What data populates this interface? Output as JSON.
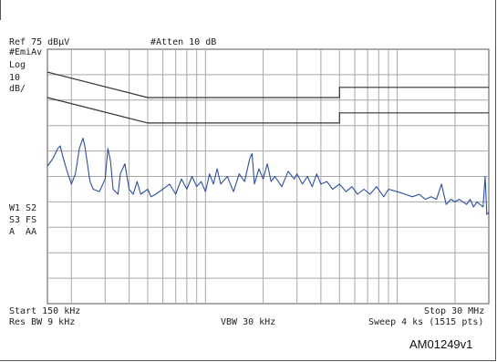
{
  "instrument": {
    "ref_level": "Ref 75 dBµV",
    "attenuation": "#Atten 10 dB",
    "detector": "#EmiAv",
    "scale_type": "Log",
    "scale_value": "10",
    "scale_unit": "dB/",
    "markers": [
      "W1 S2",
      "S3 FS",
      "A  AA"
    ],
    "start": "Start 150 kHz",
    "stop": "Stop 30 MHz",
    "rbw": "Res BW 9 kHz",
    "vbw": "VBW 30 kHz",
    "sweep": "Sweep 4 ks (1515 pts)"
  },
  "figure_id": "AM01249v1",
  "chart_data": {
    "type": "line",
    "xlim": [
      0.15,
      30
    ],
    "x_scale": "log",
    "ylim": [
      -25,
      75
    ],
    "grid": true,
    "limit_lines": [
      {
        "x": [
          0.15,
          0.5,
          0.5,
          5,
          5,
          30
        ],
        "y": [
          66,
          56,
          56,
          56,
          60,
          60
        ]
      },
      {
        "x": [
          0.15,
          0.5,
          0.5,
          5,
          5,
          30
        ],
        "y": [
          56,
          46,
          46,
          46,
          50,
          50
        ]
      }
    ],
    "series": [
      {
        "color": "#2b4fa8",
        "x": [
          0.15,
          0.16,
          0.17,
          0.175,
          0.18,
          0.19,
          0.2,
          0.21,
          0.22,
          0.23,
          0.235,
          0.25,
          0.26,
          0.28,
          0.3,
          0.31,
          0.32,
          0.33,
          0.35,
          0.36,
          0.38,
          0.4,
          0.42,
          0.44,
          0.46,
          0.5,
          0.52,
          0.55,
          0.6,
          0.65,
          0.7,
          0.75,
          0.8,
          0.85,
          0.9,
          0.95,
          1.0,
          1.05,
          1.1,
          1.15,
          1.2,
          1.3,
          1.4,
          1.5,
          1.6,
          1.7,
          1.75,
          1.8,
          1.9,
          2.0,
          2.1,
          2.2,
          2.3,
          2.5,
          2.7,
          2.9,
          3.0,
          3.2,
          3.4,
          3.6,
          3.8,
          4.0,
          4.3,
          4.6,
          5.0,
          5.4,
          5.8,
          6.2,
          6.7,
          7.2,
          7.8,
          8.5,
          9.0,
          10.0,
          11.0,
          12.0,
          13.0,
          14.0,
          15.0,
          16.0,
          17.0,
          18.0,
          19.0,
          20.0,
          21.0,
          22.0,
          23.0,
          24.0,
          25.0,
          26.0,
          27.0,
          28.0,
          28.7,
          29.3,
          30.0
        ],
        "y": [
          29,
          32,
          36,
          37,
          33,
          27,
          22,
          26,
          36,
          40,
          37,
          23,
          20,
          19,
          24,
          36,
          31,
          20,
          18,
          26,
          30,
          20,
          18,
          23,
          18,
          20,
          17,
          18,
          20,
          22,
          18,
          24,
          20,
          25,
          21,
          23,
          19,
          26,
          22,
          28,
          22,
          25,
          19,
          26,
          23,
          32,
          34,
          22,
          28,
          24,
          30,
          23,
          25,
          21,
          27,
          24,
          26,
          22,
          25,
          21,
          26,
          22,
          23,
          20,
          22,
          19,
          21,
          18,
          20,
          18,
          21,
          17,
          20,
          19,
          18,
          17,
          18,
          16,
          17,
          16,
          22,
          14,
          16,
          15,
          16,
          15,
          14,
          16,
          13,
          15,
          14,
          13,
          25,
          10,
          11
        ]
      }
    ]
  }
}
